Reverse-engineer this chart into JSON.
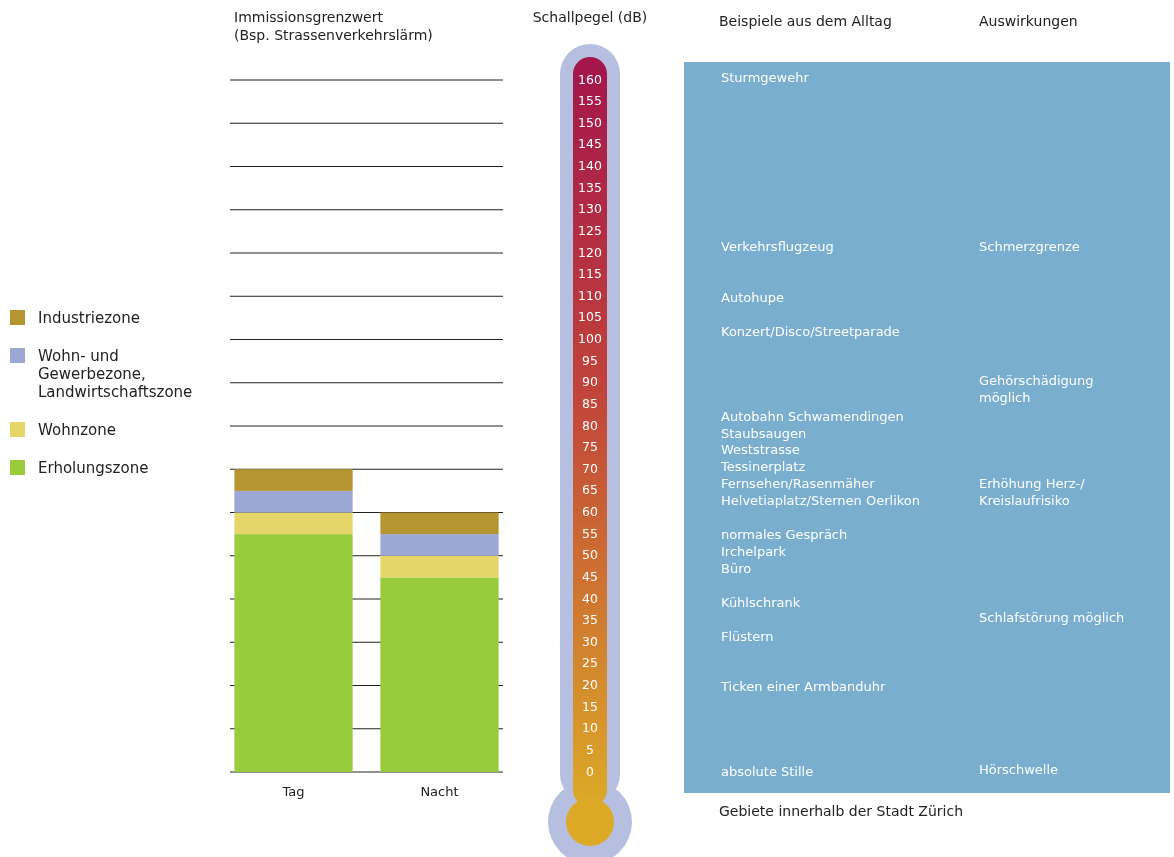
{
  "chart_data": {
    "type": "bar",
    "title": "Immissionsgrenzwert (Bsp. Strassenverkehrslärm)",
    "ylabel": "Schallpegel (dB)",
    "categories": [
      "Tag",
      "Nacht"
    ],
    "stacked": true,
    "series": [
      {
        "name": "Erholungszone",
        "color": "#99cc3d",
        "values": [
          55,
          45
        ]
      },
      {
        "name": "Wohnzone",
        "color": "#e6d66a",
        "values": [
          5,
          5
        ]
      },
      {
        "name": "Wohn- und Gewerbezone, Landwirtschaftszone",
        "color": "#9da7d4",
        "values": [
          5,
          5
        ]
      },
      {
        "name": "Industriezone",
        "color": "#b5952f",
        "values": [
          5,
          5
        ]
      }
    ],
    "ylim": [
      0,
      160
    ],
    "yticks": [
      0,
      5,
      10,
      15,
      20,
      25,
      30,
      35,
      40,
      45,
      50,
      55,
      60,
      65,
      70,
      75,
      80,
      85,
      90,
      95,
      100,
      105,
      110,
      115,
      120,
      125,
      130,
      135,
      140,
      145,
      150,
      155,
      160
    ],
    "grid": "y",
    "legend": "left",
    "annotations": [
      "Beispiele aus dem Alltag",
      "Sturmgewehr",
      "Verkehrsflugzeug",
      "Autohupe",
      "Konzert/Disco/Streetparade",
      "Autobahn Schwamendingen",
      "Staubsaugen",
      "Weststrasse",
      "Tessinerplatz",
      "Fernsehen/Rasenmäher",
      "Helvetiaplatz/Sternen Oerlikon",
      "normales Gespräch",
      "Irchelpark",
      "Büro",
      "Kühlschrank",
      "Flüstern",
      "Ticken einer Armbanduhr",
      "absolute Stille",
      "Auswirkungen",
      "Schmerzgrenze",
      "Gehörschädigung\nmöglich",
      "Erhöhung Herz-/\nKreislaufrisiko",
      "Schlafstörung möglich",
      "Hörschwelle",
      "Gebiete innerhalb der Stadt Zürich"
    ]
  }
}
